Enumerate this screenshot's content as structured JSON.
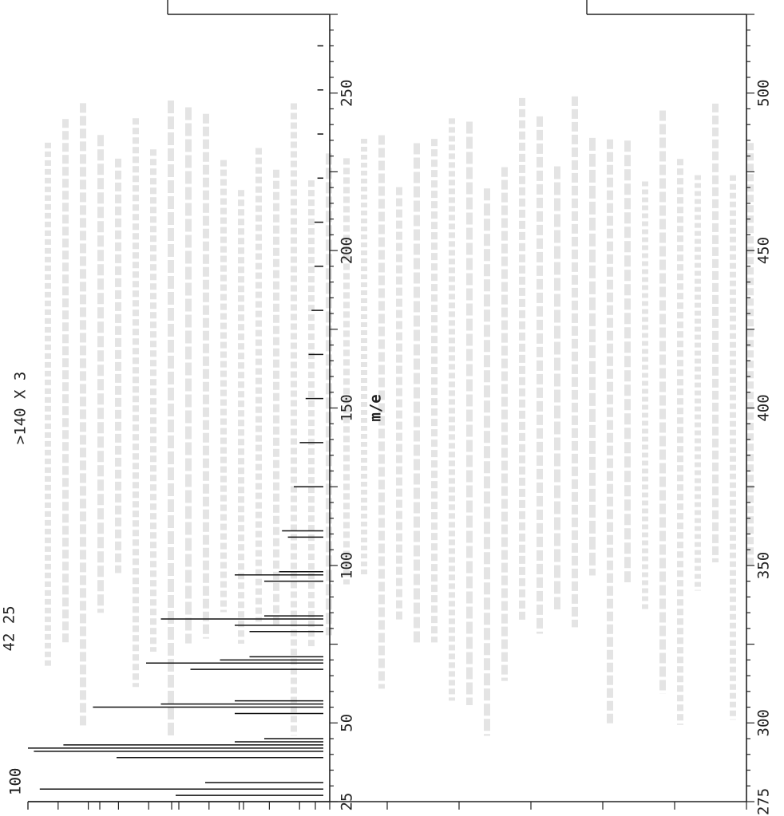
{
  "chart_data": [
    {
      "type": "bar",
      "title": "",
      "xlabel": "m/e",
      "ylabel": "",
      "ylim": [
        0,
        100
      ],
      "xlim": [
        25,
        275
      ],
      "y_tick_label": "100",
      "x_tick_labels": [
        "25",
        "50",
        "100",
        "150",
        "200",
        "250"
      ],
      "annotations": [
        ">140 X 3",
        "42 25"
      ],
      "grid": false,
      "peaks": [
        {
          "mz": 27,
          "intensity": 50
        },
        {
          "mz": 29,
          "intensity": 96
        },
        {
          "mz": 31,
          "intensity": 40
        },
        {
          "mz": 39,
          "intensity": 70
        },
        {
          "mz": 41,
          "intensity": 98
        },
        {
          "mz": 42,
          "intensity": 100
        },
        {
          "mz": 43,
          "intensity": 88
        },
        {
          "mz": 44,
          "intensity": 30
        },
        {
          "mz": 45,
          "intensity": 20
        },
        {
          "mz": 53,
          "intensity": 30
        },
        {
          "mz": 55,
          "intensity": 78
        },
        {
          "mz": 56,
          "intensity": 55
        },
        {
          "mz": 57,
          "intensity": 30
        },
        {
          "mz": 67,
          "intensity": 45
        },
        {
          "mz": 69,
          "intensity": 60
        },
        {
          "mz": 70,
          "intensity": 35
        },
        {
          "mz": 71,
          "intensity": 25
        },
        {
          "mz": 79,
          "intensity": 25
        },
        {
          "mz": 81,
          "intensity": 30
        },
        {
          "mz": 83,
          "intensity": 55
        },
        {
          "mz": 84,
          "intensity": 20
        },
        {
          "mz": 95,
          "intensity": 20
        },
        {
          "mz": 97,
          "intensity": 30
        },
        {
          "mz": 98,
          "intensity": 15
        },
        {
          "mz": 109,
          "intensity": 12
        },
        {
          "mz": 111,
          "intensity": 14
        },
        {
          "mz": 125,
          "intensity": 10
        },
        {
          "mz": 139,
          "intensity": 8
        },
        {
          "mz": 153,
          "intensity": 6
        },
        {
          "mz": 167,
          "intensity": 5
        },
        {
          "mz": 181,
          "intensity": 4
        },
        {
          "mz": 195,
          "intensity": 3
        },
        {
          "mz": 209,
          "intensity": 3
        },
        {
          "mz": 223,
          "intensity": 2
        },
        {
          "mz": 237,
          "intensity": 2
        },
        {
          "mz": 251,
          "intensity": 2
        },
        {
          "mz": 265,
          "intensity": 2
        }
      ]
    },
    {
      "type": "bar",
      "title": "",
      "xlabel": "",
      "ylabel": "",
      "ylim": [
        0,
        100
      ],
      "xlim": [
        275,
        525
      ],
      "y_tick_label": "100",
      "x_tick_labels": [
        "275",
        "300",
        "350",
        "400",
        "450",
        "500"
      ],
      "grid": false,
      "peaks": []
    }
  ]
}
